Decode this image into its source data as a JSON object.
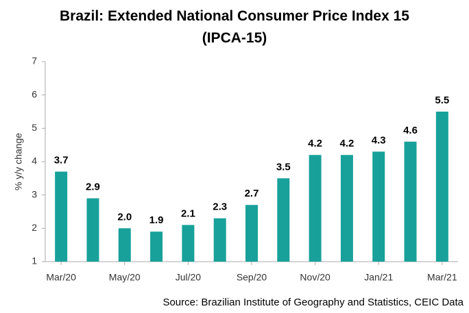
{
  "chart_data": {
    "type": "bar",
    "title": "Brazil: Extended National Consumer Price Index 15 (IPCA-15)",
    "y_label": "% y/y change",
    "source": "Source: Brazilian Institute of Geography and Statistics, CEIC Data",
    "categories": [
      "Mar/20",
      null,
      "May/20",
      null,
      "Jul/20",
      null,
      "Sep/20",
      null,
      "Nov/20",
      null,
      "Jan/21",
      null,
      "Mar/21"
    ],
    "values": [
      3.7,
      2.9,
      2.0,
      1.9,
      2.1,
      2.3,
      2.7,
      3.5,
      4.2,
      4.2,
      4.3,
      4.6,
      5.5
    ],
    "value_labels": [
      "3.7",
      "2.9",
      "2.0",
      "1.9",
      "2.1",
      "2.3",
      "2.7",
      "3.5",
      "4.2",
      "4.2",
      "4.3",
      "4.6",
      "5.5"
    ],
    "color": "#17a19a",
    "ylim": [
      1,
      7
    ],
    "yticks": [
      1,
      2,
      3,
      4,
      5,
      6,
      7
    ],
    "grid": false
  }
}
